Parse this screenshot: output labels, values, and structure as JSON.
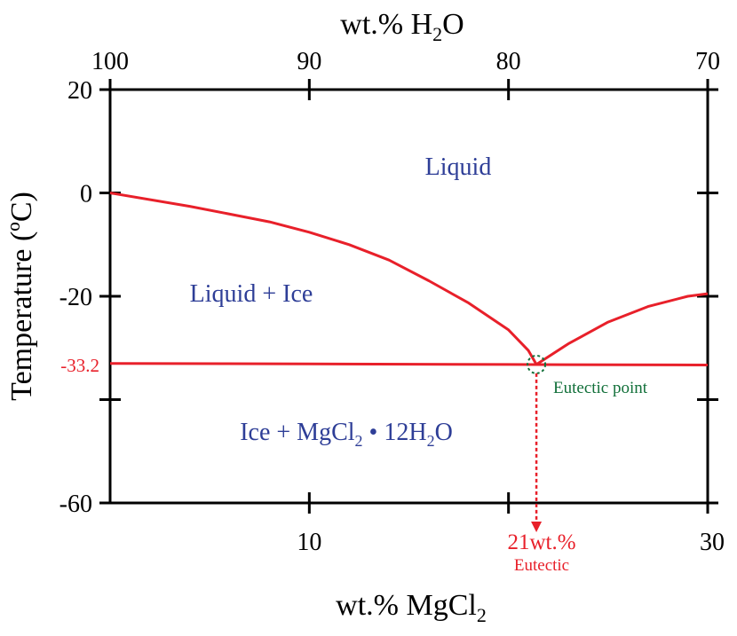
{
  "chart_data": {
    "type": "line",
    "title": "",
    "top_axis": {
      "label_main": "wt.% H",
      "label_sub": "2",
      "label_tail": "O",
      "ticks": [
        {
          "value": 100,
          "label": "100"
        },
        {
          "value": 90,
          "label": "90"
        },
        {
          "value": 80,
          "label": "80"
        },
        {
          "value": 70,
          "label": "70"
        }
      ]
    },
    "x_axis": {
      "label_main": "wt.% MgCl",
      "label_sub": "2",
      "range": [
        0,
        30
      ],
      "ticks": [
        {
          "value": 10,
          "label": "10"
        },
        {
          "value": 30,
          "label": "30"
        }
      ],
      "minor_ticks": [
        20
      ]
    },
    "y_axis": {
      "label": "Temperature (ºC)",
      "range": [
        -60,
        20
      ],
      "ticks": [
        {
          "value": 20,
          "label": "20"
        },
        {
          "value": 0,
          "label": "0"
        },
        {
          "value": -20,
          "label": "-20"
        },
        {
          "value": -60,
          "label": "-60"
        }
      ],
      "minor_ticks": [
        -40
      ],
      "highlight_tick": {
        "value": -33.2,
        "label": "-33.2"
      }
    },
    "grid": false,
    "colors": {
      "curve": "#e8202a",
      "region_text": "#2e3e97",
      "eutectic_point": "#12703a",
      "axis": "#000000"
    },
    "series": [
      {
        "points": [
          [
            0,
            0
          ],
          [
            4,
            -2.6
          ],
          [
            8,
            -5.6
          ],
          [
            10,
            -7.6
          ],
          [
            12,
            -10
          ],
          [
            14,
            -13
          ],
          [
            16,
            -17
          ],
          [
            18,
            -21.3
          ],
          [
            20,
            -26.5
          ],
          [
            21,
            -30.5
          ],
          [
            21.4,
            -33.2
          ]
        ]
      },
      {
        "points": [
          [
            21.4,
            -33.2
          ],
          [
            23,
            -29.2
          ],
          [
            25,
            -25
          ],
          [
            27,
            -22
          ],
          [
            29,
            -20
          ],
          [
            30,
            -19.5
          ]
        ]
      },
      {
        "points": [
          [
            0,
            -33.0
          ],
          [
            10,
            -33.1
          ],
          [
            20,
            -33.2
          ],
          [
            30,
            -33.3
          ]
        ]
      }
    ],
    "eutectic": {
      "x": 21.4,
      "y": -33.2
    },
    "annotations": {
      "liquid": "Liquid",
      "liquid_ice": "Liquid + Ice",
      "solid_a": "Ice + MgCl",
      "solid_sub1": "2",
      "solid_b": " • 12H",
      "solid_sub2": "2",
      "solid_c": "O",
      "eutectic_point": "Eutectic point",
      "eutectic_comp": "21wt.%",
      "eutectic_caption": "Eutectic"
    }
  }
}
